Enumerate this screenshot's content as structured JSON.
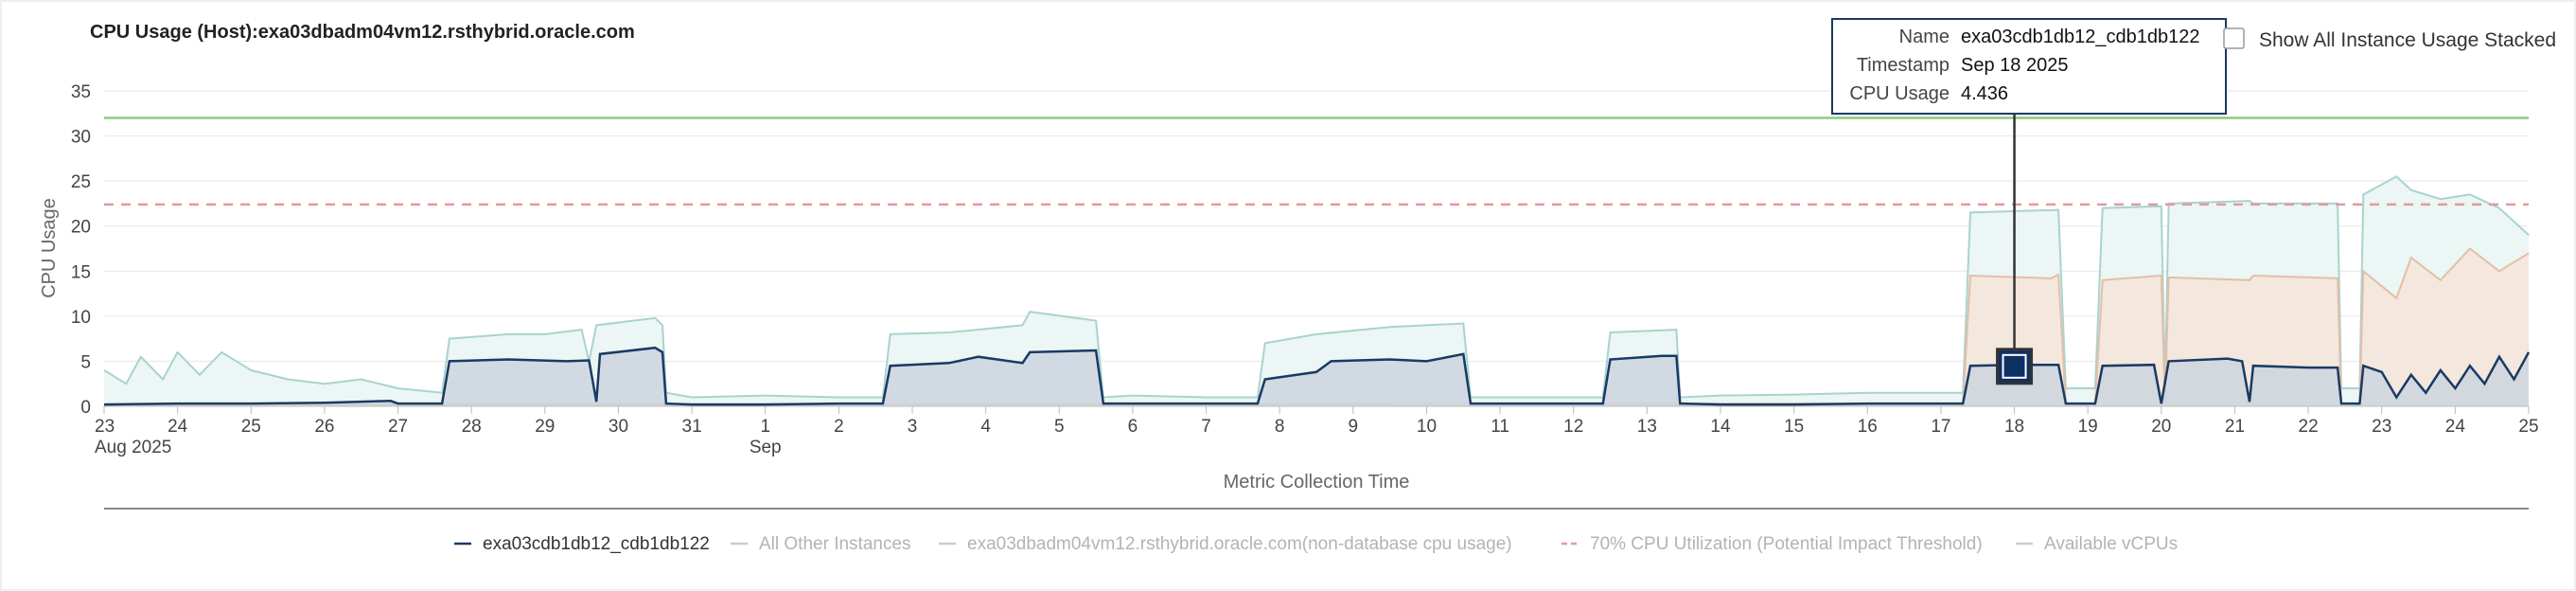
{
  "chart_data": {
    "type": "area",
    "title": "CPU Usage (Host):exa03dbadm04vm12.rsthybrid.oracle.com",
    "xlabel": "Metric Collection Time",
    "ylabel": "CPU Usage",
    "ylim": [
      0,
      35
    ],
    "y_ticks": [
      "0",
      "5",
      "10",
      "15",
      "20",
      "25",
      "30",
      "35"
    ],
    "x_ticks": [
      {
        "day": 23,
        "label": "23",
        "sub": "Aug 2025"
      },
      {
        "day": 24,
        "label": "24"
      },
      {
        "day": 25,
        "label": "25"
      },
      {
        "day": 26,
        "label": "26"
      },
      {
        "day": 27,
        "label": "27"
      },
      {
        "day": 28,
        "label": "28"
      },
      {
        "day": 29,
        "label": "29"
      },
      {
        "day": 30,
        "label": "30"
      },
      {
        "day": 31,
        "label": "31"
      },
      {
        "day": 32,
        "label": "1",
        "sub": "Sep"
      },
      {
        "day": 33,
        "label": "2"
      },
      {
        "day": 34,
        "label": "3"
      },
      {
        "day": 35,
        "label": "4"
      },
      {
        "day": 36,
        "label": "5"
      },
      {
        "day": 37,
        "label": "6"
      },
      {
        "day": 38,
        "label": "7"
      },
      {
        "day": 39,
        "label": "8"
      },
      {
        "day": 40,
        "label": "9"
      },
      {
        "day": 41,
        "label": "10"
      },
      {
        "day": 42,
        "label": "11"
      },
      {
        "day": 43,
        "label": "12"
      },
      {
        "day": 44,
        "label": "13"
      },
      {
        "day": 45,
        "label": "14"
      },
      {
        "day": 46,
        "label": "15"
      },
      {
        "day": 47,
        "label": "16"
      },
      {
        "day": 48,
        "label": "17"
      },
      {
        "day": 49,
        "label": "18"
      },
      {
        "day": 50,
        "label": "19"
      },
      {
        "day": 51,
        "label": "20"
      },
      {
        "day": 52,
        "label": "21"
      },
      {
        "day": 53,
        "label": "22"
      },
      {
        "day": 54,
        "label": "23"
      },
      {
        "day": 55,
        "label": "24"
      },
      {
        "day": 56,
        "label": "25"
      }
    ],
    "x_range": [
      23,
      56
    ],
    "thresholds": [
      {
        "name": "Available vCPUs",
        "value": 32,
        "color": "#8cc97e",
        "dash": false
      },
      {
        "name": "70% CPU Utilization (Potential Impact Threshold)",
        "value": 22.4,
        "color": "#e39a9a",
        "dash": true
      }
    ],
    "series": [
      {
        "name": "exa03cdb1db12_cdb1db122",
        "color": "#1a3a63",
        "fill": "#ccd5df",
        "points": [
          [
            23,
            0.2
          ],
          [
            24,
            0.3
          ],
          [
            25,
            0.3
          ],
          [
            26,
            0.4
          ],
          [
            26.9,
            0.6
          ],
          [
            27,
            0.3
          ],
          [
            27.6,
            0.3
          ],
          [
            27.7,
            5.0
          ],
          [
            28.5,
            5.2
          ],
          [
            29.3,
            5.0
          ],
          [
            29.6,
            5.1
          ],
          [
            29.7,
            0.5
          ],
          [
            29.75,
            5.8
          ],
          [
            30.5,
            6.5
          ],
          [
            30.6,
            6.0
          ],
          [
            30.65,
            0.3
          ],
          [
            31,
            0.2
          ],
          [
            32,
            0.2
          ],
          [
            33,
            0.3
          ],
          [
            33.6,
            0.3
          ],
          [
            33.7,
            4.5
          ],
          [
            34.5,
            4.8
          ],
          [
            34.9,
            5.5
          ],
          [
            35.5,
            4.8
          ],
          [
            35.6,
            6.0
          ],
          [
            36.5,
            6.2
          ],
          [
            36.6,
            0.3
          ],
          [
            37,
            0.3
          ],
          [
            38,
            0.3
          ],
          [
            38.7,
            0.3
          ],
          [
            38.8,
            3.0
          ],
          [
            39.5,
            3.8
          ],
          [
            39.7,
            5.0
          ],
          [
            40.5,
            5.2
          ],
          [
            41,
            5.0
          ],
          [
            41.5,
            5.8
          ],
          [
            41.6,
            0.3
          ],
          [
            42,
            0.3
          ],
          [
            43,
            0.3
          ],
          [
            43.4,
            0.3
          ],
          [
            43.5,
            5.2
          ],
          [
            44.2,
            5.6
          ],
          [
            44.4,
            5.6
          ],
          [
            44.45,
            0.3
          ],
          [
            45,
            0.2
          ],
          [
            46,
            0.2
          ],
          [
            47,
            0.3
          ],
          [
            48,
            0.3
          ],
          [
            48.3,
            0.3
          ],
          [
            48.4,
            4.5
          ],
          [
            49.0,
            4.6
          ],
          [
            49.6,
            4.6
          ],
          [
            49.7,
            0.3
          ],
          [
            50.1,
            0.3
          ],
          [
            50.2,
            4.5
          ],
          [
            50.9,
            4.6
          ],
          [
            51.0,
            0.3
          ],
          [
            51.1,
            5.0
          ],
          [
            51.9,
            5.3
          ],
          [
            52.1,
            5.0
          ],
          [
            52.2,
            0.5
          ],
          [
            52.25,
            4.5
          ],
          [
            53,
            4.3
          ],
          [
            53.4,
            4.3
          ],
          [
            53.45,
            0.3
          ],
          [
            53.7,
            0.3
          ],
          [
            53.75,
            4.5
          ],
          [
            54.0,
            3.8
          ],
          [
            54.2,
            1.0
          ],
          [
            54.4,
            3.5
          ],
          [
            54.6,
            1.5
          ],
          [
            54.8,
            4.0
          ],
          [
            55.0,
            2.0
          ],
          [
            55.2,
            4.5
          ],
          [
            55.4,
            2.5
          ],
          [
            55.6,
            5.5
          ],
          [
            55.8,
            3.0
          ],
          [
            56,
            6.0
          ]
        ]
      },
      {
        "name": "All Other Instances",
        "color": "#e3bfa8",
        "fill": "#f6e4d9",
        "points": [
          [
            23,
            0.2
          ],
          [
            48.3,
            0.3
          ],
          [
            48.4,
            14.5
          ],
          [
            49.5,
            14.2
          ],
          [
            49.6,
            14.6
          ],
          [
            49.7,
            0.3
          ],
          [
            50.1,
            0.3
          ],
          [
            50.2,
            14.0
          ],
          [
            51.0,
            14.5
          ],
          [
            51.05,
            0.3
          ],
          [
            51.1,
            14.3
          ],
          [
            52.2,
            14.0
          ],
          [
            52.25,
            14.5
          ],
          [
            53.4,
            14.2
          ],
          [
            53.45,
            0.3
          ],
          [
            53.7,
            0.3
          ],
          [
            53.75,
            15.0
          ],
          [
            54.2,
            12.0
          ],
          [
            54.4,
            16.5
          ],
          [
            54.8,
            14.0
          ],
          [
            55.2,
            17.5
          ],
          [
            55.6,
            15.0
          ],
          [
            56,
            17.0
          ]
        ]
      },
      {
        "name": "exa03dbadm04vm12.rsthybrid.oracle.com(non-database cpu usage)",
        "color": "#a9d3cf",
        "fill": "#e8f4f3",
        "points": [
          [
            23,
            4.0
          ],
          [
            23.3,
            2.5
          ],
          [
            23.5,
            5.5
          ],
          [
            23.8,
            3.0
          ],
          [
            24,
            6.0
          ],
          [
            24.3,
            3.5
          ],
          [
            24.6,
            6.0
          ],
          [
            25,
            4.0
          ],
          [
            25.5,
            3.0
          ],
          [
            26,
            2.5
          ],
          [
            26.5,
            3.0
          ],
          [
            27,
            2.0
          ],
          [
            27.6,
            1.5
          ],
          [
            27.7,
            7.5
          ],
          [
            28.5,
            8.0
          ],
          [
            29,
            8.0
          ],
          [
            29.5,
            8.5
          ],
          [
            29.6,
            5.0
          ],
          [
            29.7,
            9.0
          ],
          [
            30.5,
            9.8
          ],
          [
            30.6,
            9.0
          ],
          [
            30.65,
            1.5
          ],
          [
            31,
            1.0
          ],
          [
            32,
            1.2
          ],
          [
            33,
            1.0
          ],
          [
            33.6,
            1.0
          ],
          [
            33.7,
            8.0
          ],
          [
            34.5,
            8.2
          ],
          [
            35.5,
            9.0
          ],
          [
            35.6,
            10.5
          ],
          [
            36.5,
            9.5
          ],
          [
            36.6,
            1.0
          ],
          [
            37,
            1.2
          ],
          [
            38,
            1.0
          ],
          [
            38.7,
            1.0
          ],
          [
            38.8,
            7.0
          ],
          [
            39.5,
            8.0
          ],
          [
            40.5,
            8.8
          ],
          [
            41.5,
            9.2
          ],
          [
            41.6,
            1.0
          ],
          [
            43.4,
            1.0
          ],
          [
            43.5,
            8.2
          ],
          [
            44.4,
            8.5
          ],
          [
            44.45,
            1.0
          ],
          [
            45,
            1.2
          ],
          [
            46,
            1.3
          ],
          [
            47,
            1.5
          ],
          [
            48.3,
            1.5
          ],
          [
            48.4,
            21.5
          ],
          [
            49.6,
            21.8
          ],
          [
            49.7,
            2.0
          ],
          [
            50.1,
            2.0
          ],
          [
            50.2,
            22.0
          ],
          [
            51.0,
            22.2
          ],
          [
            51.05,
            2.0
          ],
          [
            51.1,
            22.5
          ],
          [
            52.2,
            22.8
          ],
          [
            52.25,
            22.5
          ],
          [
            53.4,
            22.5
          ],
          [
            53.45,
            2.0
          ],
          [
            53.7,
            2.0
          ],
          [
            53.75,
            23.5
          ],
          [
            54.2,
            25.5
          ],
          [
            54.4,
            24.0
          ],
          [
            54.8,
            23.0
          ],
          [
            55.2,
            23.5
          ],
          [
            55.6,
            22.0
          ],
          [
            56,
            19.0
          ]
        ]
      }
    ],
    "tooltip": {
      "x": 49.0,
      "y": 4.436,
      "name_label": "Name",
      "name_value": "exa03cdb1db12_cdb1db122",
      "timestamp_label": "Timestamp",
      "timestamp_value": "Sep 18 2025",
      "usage_label": "CPU Usage",
      "usage_value": "4.436"
    },
    "legend": [
      {
        "label": "exa03cdb1db12_cdb1db122",
        "color": "#1a3a63",
        "dash": false,
        "active": true
      },
      {
        "label": "All Other Instances",
        "color": "#cccccc",
        "dash": false,
        "active": false
      },
      {
        "label": "exa03dbadm04vm12.rsthybrid.oracle.com(non-database cpu usage)",
        "color": "#cccccc",
        "dash": false,
        "active": false
      },
      {
        "label": "70% CPU Utilization (Potential Impact Threshold)",
        "color": "#e39a9a",
        "dash": true,
        "active": false
      },
      {
        "label": "Available vCPUs",
        "color": "#cccccc",
        "dash": false,
        "active": false
      }
    ]
  },
  "controls": {
    "stack_checkbox_label": "Show All Instance Usage Stacked",
    "stack_checked": false
  }
}
